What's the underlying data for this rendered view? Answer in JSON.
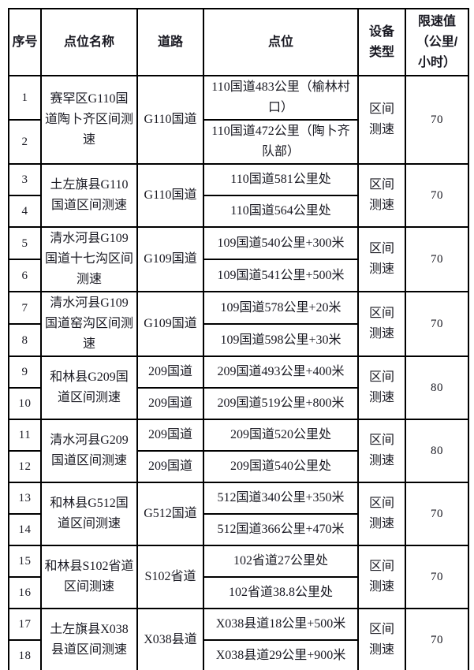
{
  "colors": {
    "border": "#000000",
    "text": "#191922",
    "background": "#ffffff"
  },
  "table": {
    "headers": {
      "serial": "序号",
      "name": "点位名称",
      "road": "道路",
      "point": "点位",
      "device": "设备\n类型",
      "limit": "限速值\n（公里/\n小时）"
    },
    "groups": [
      {
        "serials": [
          "1",
          "2"
        ],
        "name": "赛罕区G110国道陶卜齐区间测速",
        "road": "G110国道",
        "points": [
          "110国道483公里（榆林村口）",
          "110国道472公里（陶卜齐队部）"
        ],
        "device": "区间\n测速",
        "limit": "70"
      },
      {
        "serials": [
          "3",
          "4"
        ],
        "name": "土左旗县G110国道区间测速",
        "road": "G110国道",
        "points": [
          "110国道581公里处",
          "110国道564公里处"
        ],
        "device": "区间\n测速",
        "limit": "70"
      },
      {
        "serials": [
          "5",
          "6"
        ],
        "name": "清水河县G109国道十七沟区间测速",
        "road": "G109国道",
        "points": [
          "109国道540公里+300米",
          "109国道541公里+500米"
        ],
        "device": "区间\n测速",
        "limit": "70"
      },
      {
        "serials": [
          "7",
          "8"
        ],
        "name": "清水河县G109国道窑沟区间测速",
        "road": "G109国道",
        "points": [
          "109国道578公里+20米",
          "109国道598公里+30米"
        ],
        "device": "区间\n测速",
        "limit": "70"
      },
      {
        "serials": [
          "9",
          "10"
        ],
        "name": "和林县G209国道区间测速",
        "roads": [
          "209国道",
          "209国道"
        ],
        "points": [
          "209国道493公里+400米",
          "209国道519公里+800米"
        ],
        "device": "区间\n测速",
        "limit": "80"
      },
      {
        "serials": [
          "11",
          "12"
        ],
        "name": "清水河县G209国道区间测速",
        "roads": [
          "209国道",
          "209国道"
        ],
        "points": [
          "209国道520公里处",
          "209国道540公里处"
        ],
        "device": "区间\n测速",
        "limit": "80"
      },
      {
        "serials": [
          "13",
          "14"
        ],
        "name": "和林县G512国道区间测速",
        "road": "G512国道",
        "points": [
          "512国道340公里+350米",
          "512国道366公里+470米"
        ],
        "device": "区间\n测速",
        "limit": "70"
      },
      {
        "serials": [
          "15",
          "16"
        ],
        "name": "和林县S102省道区间测速",
        "road": "S102省道",
        "points": [
          "102省道27公里处",
          "102省道38.8公里处"
        ],
        "device": "区间\n测速",
        "limit": "70"
      },
      {
        "serials": [
          "17",
          "18"
        ],
        "name": "土左旗县X038县道区间测速",
        "road": "X038县道",
        "points": [
          "X038县道18公里+500米",
          "X038县道29公里+900米"
        ],
        "device": "区间\n测速",
        "limit": "70"
      }
    ]
  }
}
